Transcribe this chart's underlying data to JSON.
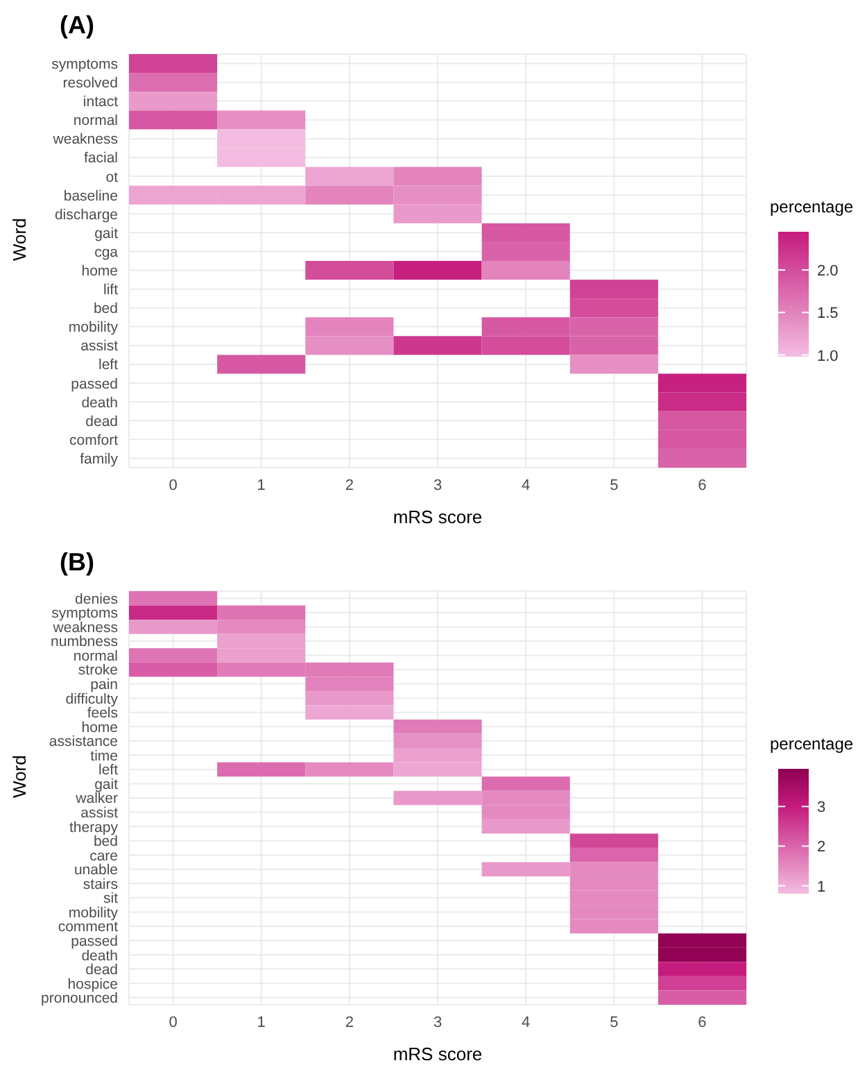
{
  "chart_data": [
    {
      "type": "heatmap",
      "title": "(A)",
      "xlabel": "mRS score",
      "ylabel": "Word",
      "clabel": "percentage",
      "grid": true,
      "categories": [
        "0",
        "1",
        "2",
        "3",
        "4",
        "5",
        "6"
      ],
      "y_categories": [
        "symptoms",
        "resolved",
        "intact",
        "normal",
        "weakness",
        "facial",
        "ot",
        "baseline",
        "discharge",
        "gait",
        "cga",
        "home",
        "lift",
        "bed",
        "mobility",
        "assist",
        "left",
        "passed",
        "death",
        "dead",
        "comfort",
        "family"
      ],
      "cells": [
        [
          2.1,
          null,
          null,
          null,
          null,
          null,
          null
        ],
        [
          1.7,
          null,
          null,
          null,
          null,
          null,
          null
        ],
        [
          1.3,
          null,
          null,
          null,
          null,
          null,
          null
        ],
        [
          1.9,
          1.4,
          null,
          null,
          null,
          null,
          null
        ],
        [
          null,
          1.0,
          null,
          null,
          null,
          null,
          null
        ],
        [
          null,
          1.0,
          null,
          null,
          null,
          null,
          null
        ],
        [
          null,
          null,
          1.2,
          1.5,
          null,
          null,
          null
        ],
        [
          1.2,
          1.2,
          1.5,
          1.4,
          null,
          null,
          null
        ],
        [
          null,
          null,
          null,
          1.3,
          null,
          null,
          null
        ],
        [
          null,
          null,
          null,
          null,
          1.9,
          null,
          null
        ],
        [
          null,
          null,
          null,
          null,
          1.8,
          null,
          null
        ],
        [
          null,
          null,
          2.0,
          2.4,
          1.5,
          null,
          null
        ],
        [
          null,
          null,
          null,
          null,
          null,
          2.1,
          null
        ],
        [
          null,
          null,
          null,
          null,
          null,
          2.0,
          null
        ],
        [
          null,
          null,
          1.5,
          null,
          1.9,
          1.8,
          null
        ],
        [
          null,
          null,
          1.4,
          2.2,
          2.0,
          1.8,
          null
        ],
        [
          null,
          1.9,
          null,
          null,
          null,
          1.4,
          null
        ],
        [
          null,
          null,
          null,
          null,
          null,
          null,
          2.4
        ],
        [
          null,
          null,
          null,
          null,
          null,
          null,
          2.3
        ],
        [
          null,
          null,
          null,
          null,
          null,
          null,
          1.9
        ],
        [
          null,
          null,
          null,
          null,
          null,
          null,
          1.9
        ],
        [
          null,
          null,
          null,
          null,
          null,
          null,
          1.8
        ]
      ],
      "clim": [
        0.98,
        2.45
      ],
      "cticks": [
        {
          "value": 1.0,
          "label": "1.0"
        },
        1.5,
        {
          "value": 2.0,
          "label": "2.0"
        }
      ]
    },
    {
      "type": "heatmap",
      "title": "(B)",
      "xlabel": "mRS score",
      "ylabel": "Word",
      "clabel": "percentage",
      "grid": true,
      "categories": [
        "0",
        "1",
        "2",
        "3",
        "4",
        "5",
        "6"
      ],
      "y_categories": [
        "denies",
        "symptoms",
        "weakness",
        "numbness",
        "normal",
        "stroke",
        "pain",
        "difficulty",
        "feels",
        "home",
        "assistance",
        "time",
        "left",
        "gait",
        "walker",
        "assist",
        "therapy",
        "bed",
        "care",
        "unable",
        "stairs",
        "sit",
        "mobility",
        "comment",
        "passed",
        "death",
        "dead",
        "hospice",
        "pronounced"
      ],
      "cells": [
        [
          1.8,
          null,
          null,
          null,
          null,
          null,
          null
        ],
        [
          2.8,
          1.8,
          null,
          null,
          null,
          null,
          null
        ],
        [
          1.3,
          1.5,
          null,
          null,
          null,
          null,
          null
        ],
        [
          null,
          1.2,
          null,
          null,
          null,
          null,
          null
        ],
        [
          1.8,
          1.2,
          null,
          null,
          null,
          null,
          null
        ],
        [
          2.1,
          1.7,
          1.7,
          null,
          null,
          null,
          null
        ],
        [
          null,
          null,
          1.6,
          null,
          null,
          null,
          null
        ],
        [
          null,
          null,
          1.3,
          null,
          null,
          null,
          null
        ],
        [
          null,
          null,
          1.1,
          null,
          null,
          null,
          null
        ],
        [
          null,
          null,
          null,
          1.7,
          null,
          null,
          null
        ],
        [
          null,
          null,
          null,
          1.4,
          null,
          null,
          null
        ],
        [
          null,
          null,
          null,
          1.2,
          null,
          null,
          null
        ],
        [
          null,
          1.9,
          1.5,
          1.1,
          null,
          null,
          null
        ],
        [
          null,
          null,
          null,
          null,
          1.9,
          null,
          null
        ],
        [
          null,
          null,
          null,
          1.3,
          1.5,
          null,
          null
        ],
        [
          null,
          null,
          null,
          null,
          1.5,
          null,
          null
        ],
        [
          null,
          null,
          null,
          null,
          1.3,
          null,
          null
        ],
        [
          null,
          null,
          null,
          null,
          null,
          2.4,
          null
        ],
        [
          null,
          null,
          null,
          null,
          null,
          2.0,
          null
        ],
        [
          null,
          null,
          null,
          null,
          1.3,
          1.5,
          null
        ],
        [
          null,
          null,
          null,
          null,
          null,
          1.5,
          null
        ],
        [
          null,
          null,
          null,
          null,
          null,
          1.5,
          null
        ],
        [
          null,
          null,
          null,
          null,
          null,
          1.5,
          null
        ],
        [
          null,
          null,
          null,
          null,
          null,
          1.5,
          null
        ],
        [
          null,
          null,
          null,
          null,
          null,
          null,
          3.9
        ],
        [
          null,
          null,
          null,
          null,
          null,
          null,
          3.9
        ],
        [
          null,
          null,
          null,
          null,
          null,
          null,
          3.0
        ],
        [
          null,
          null,
          null,
          null,
          null,
          null,
          2.5
        ],
        [
          null,
          null,
          null,
          null,
          null,
          null,
          2.1
        ]
      ],
      "clim": [
        0.8,
        3.95
      ],
      "cticks": [
        1,
        2,
        3
      ]
    }
  ]
}
